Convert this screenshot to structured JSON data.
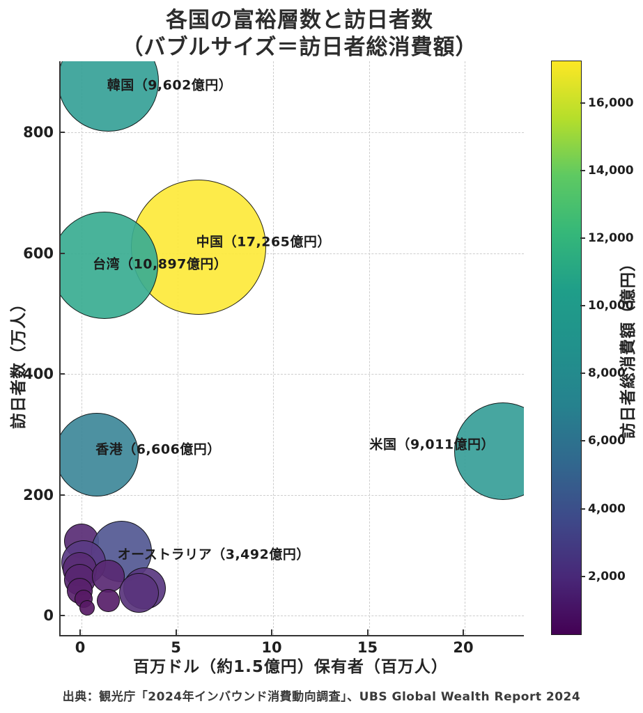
{
  "title": {
    "line1": "各国の富裕層数と訪日者数",
    "line2": "（バブルサイズ＝訪日者総消費額）"
  },
  "source": "出典：観光庁「2024年インバウンド消費動向調査」、UBS Global Wealth Report 2024",
  "chart_data": {
    "type": "scatter",
    "title": "各国の富裕層数と訪日者数（バブルサイズ＝訪日者総消費額）",
    "xlabel": "百万ドル（約1.5億円）保有者（百万人）",
    "ylabel": "訪日者数（万人）",
    "grid": true,
    "xlim": [
      -1.1,
      23.1
    ],
    "ylim": [
      -27,
      918
    ],
    "xticks": [
      0,
      5,
      10,
      15,
      20
    ],
    "yticks": [
      0,
      200,
      400,
      600,
      800
    ],
    "colorbar": {
      "label": "訪日者総消費額（億円）",
      "ticks": [
        2000,
        4000,
        6000,
        8000,
        10000,
        12000,
        14000,
        16000
      ],
      "vmin": 300,
      "vmax": 17265,
      "colormap": "viridis",
      "position": "right"
    },
    "size_encoding": "訪日者総消費額",
    "color_encoding": "訪日者総消費額",
    "bubbles": [
      {
        "name": "韓国",
        "label": "韓国（9,602億円）",
        "x": 1.4,
        "y": 885,
        "spend": 9602,
        "label_at": [
          4.6,
          880
        ]
      },
      {
        "name": "中国",
        "label": "中国（17,265億円）",
        "x": 6.1,
        "y": 610,
        "spend": 17265,
        "label_at": [
          9.5,
          620
        ]
      },
      {
        "name": "台湾",
        "label": "台湾（10,897億円）",
        "x": 1.2,
        "y": 580,
        "spend": 10897,
        "label_at": [
          4.1,
          583
        ]
      },
      {
        "name": "米国",
        "label": "米国（9,011億円）",
        "x": 22.0,
        "y": 272,
        "spend": 9011,
        "label_at": [
          18.3,
          285
        ]
      },
      {
        "name": "香港",
        "label": "香港（6,606億円）",
        "x": 0.8,
        "y": 266,
        "spend": 6606,
        "label_at": [
          4.0,
          277
        ]
      },
      {
        "name": "",
        "label": "",
        "x": 0.0,
        "y": 123,
        "spend": 1150
      },
      {
        "name": "オーストラリア",
        "label": "オーストラリア（3,492億円）",
        "x": 2.1,
        "y": 106,
        "spend": 3492,
        "label_at": [
          6.9,
          103
        ]
      },
      {
        "name": "",
        "label": "",
        "x": 0.1,
        "y": 88,
        "spend": 1880
      },
      {
        "name": "",
        "label": "",
        "x": -0.1,
        "y": 77,
        "spend": 1100
      },
      {
        "name": "",
        "label": "",
        "x": -0.1,
        "y": 59,
        "spend": 930
      },
      {
        "name": "",
        "label": "",
        "x": 1.4,
        "y": 65,
        "spend": 1000
      },
      {
        "name": "",
        "label": "",
        "x": 3.3,
        "y": 45,
        "spend": 1700
      },
      {
        "name": "",
        "label": "",
        "x": -0.1,
        "y": 41,
        "spend": 620
      },
      {
        "name": "",
        "label": "",
        "x": 3.0,
        "y": 37,
        "spend": 1500
      },
      {
        "name": "",
        "label": "",
        "x": 0.1,
        "y": 28,
        "spend": 320
      },
      {
        "name": "",
        "label": "",
        "x": 1.4,
        "y": 25,
        "spend": 490
      },
      {
        "name": "",
        "label": "",
        "x": 0.3,
        "y": 13,
        "spend": 230
      }
    ]
  }
}
